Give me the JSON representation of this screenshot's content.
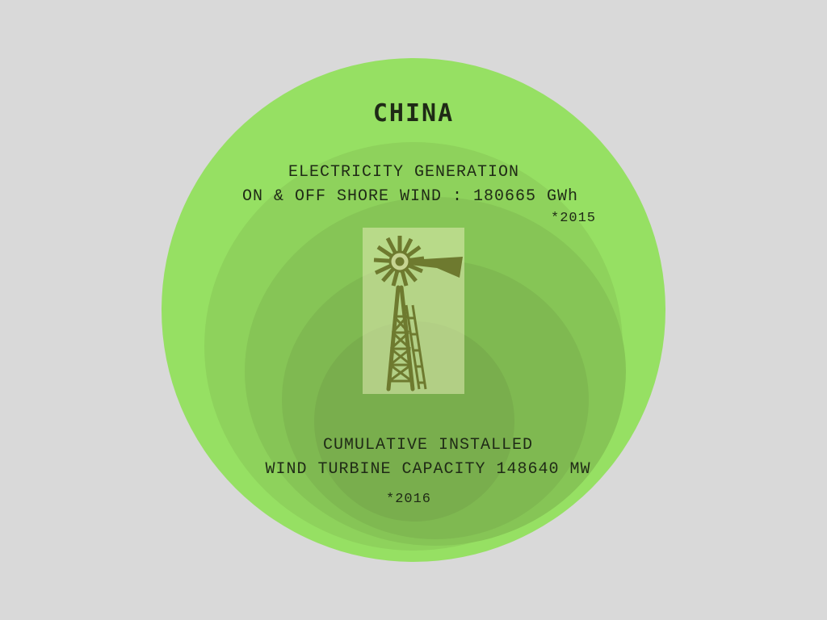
{
  "country": "CHINA",
  "generation": {
    "line1": "ELECTRICITY GENERATION",
    "line2": "ON & OFF SHORE WIND : 180665 GWh",
    "year_note": "*2015"
  },
  "capacity": {
    "line1": "CUMULATIVE INSTALLED",
    "line2": "WIND TURBINE CAPACITY 148640 MW",
    "year_note": "*2016"
  },
  "icon": "windmill-icon",
  "colors": {
    "background": "#d9d9d9",
    "outer_circle": "#96e063",
    "inner_circle": "#79ae4d",
    "text": "#1f2a16",
    "windmill": "#6e7a2f"
  }
}
